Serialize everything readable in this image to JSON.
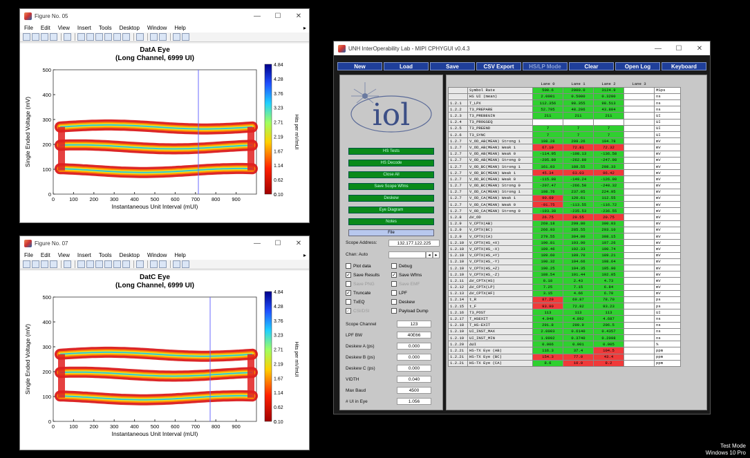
{
  "fig05": {
    "title": "Figure No. 05",
    "menus": [
      "File",
      "Edit",
      "View",
      "Insert",
      "Tools",
      "Desktop",
      "Window",
      "Help"
    ],
    "plot_title": "DatA Eye",
    "plot_subtitle": "(Long Channel, 6999 UI)",
    "ylabel": "Single Ended Voltage (mV)",
    "xlabel": "Instantaneous Unit Interval (mUI)",
    "cbar_label": "Hits per mV/mUI",
    "yticks": [
      "500",
      "400",
      "300",
      "200",
      "100",
      "0"
    ],
    "xticks": [
      "0",
      "100",
      "200",
      "300",
      "400",
      "500",
      "600",
      "700",
      "800",
      "900"
    ],
    "cticks": [
      "4.84",
      "4.28",
      "3.76",
      "3.23",
      "2.71",
      "2.19",
      "1.67",
      "1.14",
      "0.62",
      "0.10"
    ],
    "cmark": "0"
  },
  "fig07": {
    "title": "Figure No. 07",
    "menus": [
      "File",
      "Edit",
      "View",
      "Insert",
      "Tools",
      "Desktop",
      "Window",
      "Help"
    ],
    "plot_title": "DatC Eye",
    "plot_subtitle": "(Long Channel, 6999 UI)",
    "ylabel": "Single Ended Voltage (mV)",
    "xlabel": "Instantaneous Unit Interval (mUI)",
    "cbar_label": "Hits per mV/mUI",
    "yticks": [
      "500",
      "400",
      "300",
      "200",
      "100",
      "0"
    ],
    "xticks": [
      "0",
      "100",
      "200",
      "300",
      "400",
      "500",
      "600",
      "700",
      "800",
      "900"
    ],
    "cticks": [
      "4.84",
      "4.28",
      "3.76",
      "3.23",
      "2.71",
      "2.19",
      "1.67",
      "1.14",
      "0.62",
      "0.10"
    ],
    "cmark": "0"
  },
  "app": {
    "title": "UNH InterOperability Lab - MIPI CPHYGUI v0.4.3",
    "buttons": [
      "New",
      "Load",
      "Save",
      "CSV Export",
      "HS/LP Mode",
      "Clear",
      "Open Log",
      "Keyboard"
    ],
    "logo": "iol",
    "left_buttons": [
      "HS Tests",
      "HS Decode",
      "Close All",
      "Save Scope Wfms",
      "Deskew",
      "Eye Diagram",
      "Notes"
    ],
    "file_button": "File",
    "scope_address_label": "Scope Address:",
    "scope_address": "132.177.122.225",
    "chan_label": "Chan: Auto",
    "checks": [
      {
        "label": "Plot data",
        "checked": false,
        "disabled": false
      },
      {
        "label": "Debug",
        "checked": false,
        "disabled": false
      },
      {
        "label": "Save Results",
        "checked": true,
        "disabled": false
      },
      {
        "label": "Save Wfms",
        "checked": true,
        "disabled": false
      },
      {
        "label": "Save PNG",
        "checked": false,
        "disabled": true
      },
      {
        "label": "Save EMF",
        "checked": false,
        "disabled": true
      },
      {
        "label": "Truncate",
        "checked": true,
        "disabled": false
      },
      {
        "label": "LPF",
        "checked": false,
        "disabled": false
      },
      {
        "label": "TxEQ",
        "checked": false,
        "disabled": false
      },
      {
        "label": "Deskew",
        "checked": false,
        "disabled": false
      },
      {
        "label": "CSI/DSI",
        "checked": true,
        "disabled": true
      },
      {
        "label": "Payload Dump",
        "checked": false,
        "disabled": false
      }
    ],
    "params": [
      {
        "label": "Scope Channel",
        "value": "123"
      },
      {
        "label": "LPF BW",
        "value": "40E66"
      },
      {
        "label": "Deskew A (ps)",
        "value": "0.000"
      },
      {
        "label": "Deskew B (ps)",
        "value": "0.000"
      },
      {
        "label": "Deskew C (ps)",
        "value": "0.000"
      },
      {
        "label": "VIDTH",
        "value": "0.040"
      },
      {
        "label": "Max Baud",
        "value": "4500"
      },
      {
        "label": "# UI in Eye",
        "value": "1.056"
      }
    ],
    "table": {
      "headers": [
        "Lane 0",
        "Lane 1",
        "Lane 2",
        "Lane 3"
      ],
      "rows": [
        {
          "id": "",
          "name": "Symbol Rate",
          "v": [
            "500.6",
            "2000.0",
            "3124.9",
            ""
          ],
          "c": "wggg",
          "unit": "MSps"
        },
        {
          "id": "",
          "name": "HS UI (mean)",
          "v": [
            "2.0001",
            "0.5000",
            "0.3200",
            ""
          ],
          "c": "wggg",
          "unit": "ns"
        },
        {
          "id": "1.2.1",
          "name": "T_LPX",
          "v": [
            "112.356",
            "98.355",
            "98.513",
            ""
          ],
          "c": "wggg",
          "unit": "ns"
        },
        {
          "id": "1.2.2",
          "name": "T3_PREPARE",
          "v": [
            "52.795",
            "48.206",
            "43.804",
            ""
          ],
          "c": "wggg",
          "unit": "ns"
        },
        {
          "id": "1.2.3",
          "name": "T3_PREBEGIN",
          "v": [
            "211",
            "211",
            "211",
            ""
          ],
          "c": "wggg",
          "unit": "UI"
        },
        {
          "id": "1.2.4",
          "name": "T3_PROGSEQ",
          "v": [
            "",
            "",
            "",
            ""
          ],
          "c": "wwww",
          "unit": "UI"
        },
        {
          "id": "1.2.5",
          "name": "T3_PREEND",
          "v": [
            "7",
            "7",
            "7",
            ""
          ],
          "c": "wggg",
          "unit": "UI"
        },
        {
          "id": "1.2.6",
          "name": "T3_SYNC",
          "v": [
            "7",
            "7",
            "7",
            ""
          ],
          "c": "wggg",
          "unit": "UI"
        },
        {
          "id": "1.2.7",
          "name": "V_OD_AB(MEAN) Strong 1",
          "v": [
            "198.28",
            "209.26",
            "194.78",
            ""
          ],
          "c": "wggg",
          "unit": "mV"
        },
        {
          "id": "1.2.7",
          "name": "V_OD_AB(MEAN) Weak 1",
          "v": [
            "67.10",
            "72.81",
            "72.32",
            ""
          ],
          "c": "wrrr",
          "unit": "mV"
        },
        {
          "id": "1.2.7",
          "name": "V_OD_AB(MEAN) Weak 0",
          "v": [
            "-114.95",
            "-108.13",
            "-136.58",
            ""
          ],
          "c": "wggg",
          "unit": "mV"
        },
        {
          "id": "1.2.7",
          "name": "V_OD_AB(MEAN) Strong 0",
          "v": [
            "-205.89",
            "-262.89",
            "-247.98",
            ""
          ],
          "c": "wggg",
          "unit": "mV"
        },
        {
          "id": "1.2.7",
          "name": "V_OD_BC(MEAN) Strong 1",
          "v": [
            "161.03",
            "188.55",
            "208.33",
            ""
          ],
          "c": "wggg",
          "unit": "mV"
        },
        {
          "id": "1.2.7",
          "name": "V_OD_BC(MEAN) Weak 1",
          "v": [
            "45.34",
            "63.03",
            "96.42",
            ""
          ],
          "c": "wrrr",
          "unit": "mV"
        },
        {
          "id": "1.2.7",
          "name": "V_OD_BC(MEAN) Weak 0",
          "v": [
            "-115.98",
            "-149.24",
            "-126.90",
            ""
          ],
          "c": "wggg",
          "unit": "mV"
        },
        {
          "id": "1.2.7",
          "name": "V_OD_BC(MEAN) Strong 0",
          "v": [
            "-207.47",
            "-266.50",
            "-240.32",
            ""
          ],
          "c": "wggg",
          "unit": "mV"
        },
        {
          "id": "1.2.7",
          "name": "V_OD_CA(MEAN) Strong 1",
          "v": [
            "198.76",
            "237.05",
            "224.95",
            ""
          ],
          "c": "wggg",
          "unit": "mV"
        },
        {
          "id": "1.2.7",
          "name": "V_OD_CA(MEAN) Weak 1",
          "v": [
            "90.69",
            "120.61",
            "112.55",
            ""
          ],
          "c": "wrgg",
          "unit": "mV"
        },
        {
          "id": "1.2.7",
          "name": "V_OD_CA(MEAN) Weak 0",
          "v": [
            "-91.75",
            "-113.55",
            "-116.72",
            ""
          ],
          "c": "wrgg",
          "unit": "mV"
        },
        {
          "id": "1.2.7",
          "name": "V_OD_CA(MEAN) Strong 0",
          "v": [
            "-193.38",
            "-235.53",
            "-236.55",
            ""
          ],
          "c": "wggg",
          "unit": "mV"
        },
        {
          "id": "1.2.8",
          "name": "ΔV_OD",
          "v": [
            "26.75",
            "29.55",
            "20.75",
            ""
          ],
          "c": "wrrr",
          "unit": "mV"
        },
        {
          "id": "1.2.9",
          "name": "V_CPTX(AB)",
          "v": [
            "269.18",
            "299.80",
            "300.03",
            ""
          ],
          "c": "wggg",
          "unit": "mV"
        },
        {
          "id": "1.2.9",
          "name": "V_CPTX(BC)",
          "v": [
            "266.93",
            "285.55",
            "293.10",
            ""
          ],
          "c": "wggg",
          "unit": "mV"
        },
        {
          "id": "1.2.9",
          "name": "V_CPTX(CA)",
          "v": [
            "279.55",
            "304.00",
            "308.15",
            ""
          ],
          "c": "wggg",
          "unit": "mV"
        },
        {
          "id": "1.2.10",
          "name": "V_CPTX(HS_+X)",
          "v": [
            "190.81",
            "193.90",
            "197.26",
            ""
          ],
          "c": "wggg",
          "unit": "mV"
        },
        {
          "id": "1.2.10",
          "name": "V_CPTX(HS_-X)",
          "v": [
            "189.46",
            "192.33",
            "190.74",
            ""
          ],
          "c": "wggg",
          "unit": "mV"
        },
        {
          "id": "1.2.10",
          "name": "V_CPTX(HS_+Y)",
          "v": [
            "189.60",
            "189.70",
            "189.21",
            ""
          ],
          "c": "wggg",
          "unit": "mV"
        },
        {
          "id": "1.2.10",
          "name": "V_CPTX(HS_-Y)",
          "v": [
            "190.32",
            "194.66",
            "198.64",
            ""
          ],
          "c": "wggg",
          "unit": "mV"
        },
        {
          "id": "1.2.10",
          "name": "V_CPTX(HS_+Z)",
          "v": [
            "190.25",
            "194.35",
            "195.90",
            ""
          ],
          "c": "wggg",
          "unit": "mV"
        },
        {
          "id": "1.2.10",
          "name": "V_CPTX(HS_-Z)",
          "v": [
            "188.54",
            "191.44",
            "192.05",
            ""
          ],
          "c": "wggg",
          "unit": "mV"
        },
        {
          "id": "1.2.11",
          "name": "ΔV_CPTX(HS)",
          "v": [
            "0.18",
            "2.43",
            "4.73",
            ""
          ],
          "c": "wggg",
          "unit": "mV"
        },
        {
          "id": "1.2.12",
          "name": "ΔV_CPTX(LP)",
          "v": [
            "7.25",
            "7.15",
            "6.84",
            ""
          ],
          "c": "wggg",
          "unit": "mV"
        },
        {
          "id": "1.2.13",
          "name": "ΔV_CPTX(HF)",
          "v": [
            "3.15",
            "4.66",
            "6.70",
            ""
          ],
          "c": "wggg",
          "unit": "mV"
        },
        {
          "id": "1.2.14",
          "name": "t_R",
          "v": [
            "87.29",
            "69.87",
            "78.70",
            ""
          ],
          "c": "wrgg",
          "unit": "ps"
        },
        {
          "id": "1.2.15",
          "name": "t_F",
          "v": [
            "93.90",
            "72.82",
            "93.23",
            ""
          ],
          "c": "wrgg",
          "unit": "ps"
        },
        {
          "id": "1.2.16",
          "name": "T3_POST",
          "v": [
            "113",
            "113",
            "113",
            ""
          ],
          "c": "wggg",
          "unit": "UI"
        },
        {
          "id": "1.2.17",
          "name": "T_HSEXIT",
          "v": [
            "4.948",
            "4.892",
            "4.687",
            ""
          ],
          "c": "wggg",
          "unit": "ns"
        },
        {
          "id": "1.2.18",
          "name": "T_HS-EXIT",
          "v": [
            "291.8",
            "299.9",
            "296.5",
            ""
          ],
          "c": "wggg",
          "unit": "ns"
        },
        {
          "id": "1.2.19",
          "name": "UI_INST_MAX",
          "v": [
            "2.0003",
            "0.6140",
            "0.4357",
            ""
          ],
          "c": "wggg",
          "unit": "ns"
        },
        {
          "id": "1.2.19",
          "name": "UI_INST_MIN",
          "v": [
            "1.9992",
            "0.3740",
            "0.2098",
            ""
          ],
          "c": "wggg",
          "unit": "ns"
        },
        {
          "id": "1.2.20",
          "name": "ΔUI",
          "v": [
            "0.006",
            "0.001",
            "0.005",
            ""
          ],
          "c": "wggg",
          "unit": "%"
        },
        {
          "id": "1.2.21",
          "name": "HS-TX Eye (AB)",
          "v": [
            "116.3",
            "37.4",
            "104.5",
            ""
          ],
          "c": "wggr",
          "unit": "ppm"
        },
        {
          "id": "1.2.21",
          "name": "HS-TX Eye (BC)",
          "v": [
            "154.3",
            "77.0",
            "43.4",
            ""
          ],
          "c": "wrrr",
          "unit": "ppm"
        },
        {
          "id": "1.2.21",
          "name": "HS-TX Eye (CA)",
          "v": [
            "8.6",
            "10.0",
            "8.2",
            ""
          ],
          "c": "wgrr",
          "unit": "ppm"
        }
      ]
    }
  },
  "desktop": {
    "line1": "Test Mode",
    "line2": "Windows 10 Pro"
  }
}
